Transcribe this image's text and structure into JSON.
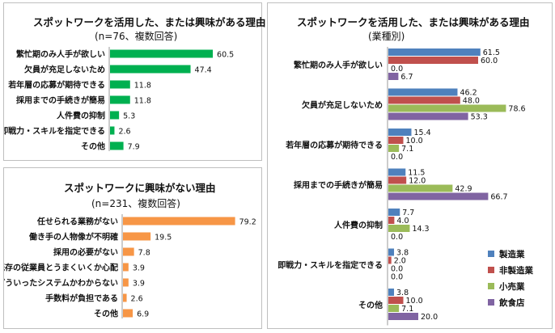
{
  "panels": {
    "reasons_used": {
      "title": "スポットワークを活用した、または興味がある理由",
      "subtitle": "(n=76、複数回答)"
    },
    "reasons_not_interested": {
      "title": "スポットワークに興味がない理由",
      "subtitle": "(n=231、複数回答)"
    },
    "reasons_by_industry": {
      "title": "スポットワークを活用した、または興味がある理由",
      "subtitle": "(業種別)"
    }
  },
  "chart_data": [
    {
      "id": "reasons_used",
      "type": "bar",
      "orientation": "horizontal",
      "title": "スポットワークを活用した、または興味がある理由",
      "subtitle": "(n=76、複数回答)",
      "categories": [
        "繁忙期のみ人手が欲しい",
        "欠員が充足しないため",
        "若年層の応募が期待できる",
        "採用までの手続きが簡易",
        "人件費の抑制",
        "即戦力・スキルを指定できる",
        "その他"
      ],
      "values": [
        60.5,
        47.4,
        11.8,
        11.8,
        5.3,
        2.6,
        7.9
      ],
      "color": "#00b050",
      "xlim": [
        0,
        70
      ]
    },
    {
      "id": "reasons_not_interested",
      "type": "bar",
      "orientation": "horizontal",
      "title": "スポットワークに興味がない理由",
      "subtitle": "(n=231、複数回答)",
      "categories": [
        "任せられる業務がない",
        "働き手の人物像が不明確",
        "採用の必要がない",
        "既存の従業員とうまくいくか心配",
        "どういったシステムかわからない",
        "手数料が負担である",
        "その他"
      ],
      "values": [
        79.2,
        19.5,
        7.8,
        3.9,
        3.9,
        2.6,
        6.9
      ],
      "color": "#f79646",
      "xlim": [
        0,
        90
      ]
    },
    {
      "id": "reasons_by_industry",
      "type": "bar",
      "orientation": "horizontal",
      "title": "スポットワークを活用した、または興味がある理由",
      "subtitle": "(業種別)",
      "categories": [
        "繁忙期のみ人手が欲しい",
        "欠員が充足しないため",
        "若年層の応募が期待できる",
        "採用までの手続きが簡易",
        "人件費の抑制",
        "即戦力・スキルを指定できる",
        "その他"
      ],
      "series": [
        {
          "name": "製造業",
          "color": "#4f81bd",
          "values": [
            61.5,
            46.2,
            15.4,
            11.5,
            7.7,
            3.8,
            3.8
          ]
        },
        {
          "name": "非製造業",
          "color": "#c0504d",
          "values": [
            60.0,
            48.0,
            10.0,
            12.0,
            4.0,
            2.0,
            10.0
          ]
        },
        {
          "name": "小売業",
          "color": "#9bbb59",
          "values": [
            0.0,
            78.6,
            7.1,
            42.9,
            14.3,
            0.0,
            7.1
          ]
        },
        {
          "name": "飲食店",
          "color": "#8064a2",
          "values": [
            6.7,
            53.3,
            0.0,
            66.7,
            0.0,
            0.0,
            20.0
          ]
        }
      ],
      "legend": "bottom-right",
      "xlim": [
        0,
        90
      ]
    }
  ]
}
